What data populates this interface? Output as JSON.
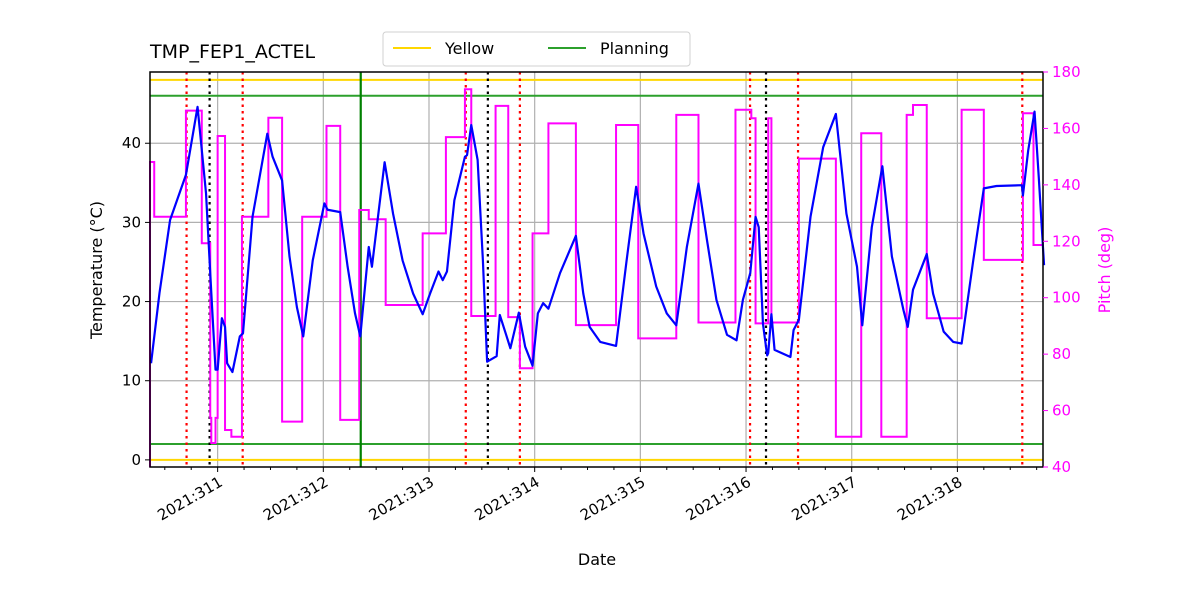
{
  "chart_data": {
    "type": "line",
    "title": "TMP_FEP1_ACTEL",
    "xlabel": "Date",
    "ylabel": "Temperature (°C)",
    "y2label": "Pitch (deg)",
    "xlim": [
      310.36,
      318.81
    ],
    "ylim": [
      -0.9,
      49.0
    ],
    "y2lim": [
      40,
      180
    ],
    "grid": true,
    "legend_placement": "top-center",
    "x_ticks": [
      311,
      312,
      313,
      314,
      315,
      316,
      317,
      318
    ],
    "x_tick_labels": [
      "2021:311",
      "2021:312",
      "2021:313",
      "2021:314",
      "2021:315",
      "2021:316",
      "2021:317",
      "2021:318"
    ],
    "y_ticks": [
      0,
      10,
      20,
      30,
      40
    ],
    "y2_ticks": [
      40,
      60,
      80,
      100,
      120,
      140,
      160,
      180
    ],
    "colors": {
      "temperature": "#0000ff",
      "pitch": "#ff00ff",
      "yellow": "#ffd700",
      "planning": "#2ca02c",
      "planning_vline": "#008000",
      "red_vline": "#ff0000",
      "black_vline": "#000000",
      "grid": "#b0b0b0"
    },
    "legend": [
      {
        "label": "Yellow",
        "color": "#ffd700"
      },
      {
        "label": "Planning",
        "color": "#2ca02c"
      }
    ],
    "limit_lines": [
      {
        "series": "Yellow",
        "values": [
          48,
          0
        ]
      },
      {
        "series": "Planning",
        "values": [
          46,
          2
        ]
      }
    ],
    "vlines": {
      "red_dotted": [
        310.706,
        311.237,
        313.348,
        313.86,
        316.038,
        316.492,
        318.614
      ],
      "black_dotted": [
        310.924,
        313.557,
        316.189
      ],
      "green_solid": [
        312.354
      ]
    },
    "temperature": [
      [
        310.37,
        12.2
      ],
      [
        310.45,
        21.1
      ],
      [
        310.55,
        30.3
      ],
      [
        310.7,
        36.0
      ],
      [
        310.81,
        44.6
      ],
      [
        310.89,
        33.7
      ],
      [
        310.94,
        21.1
      ],
      [
        310.98,
        11.4
      ],
      [
        311.0,
        11.4
      ],
      [
        311.04,
        17.9
      ],
      [
        311.07,
        16.8
      ],
      [
        311.09,
        12.2
      ],
      [
        311.14,
        11.1
      ],
      [
        311.21,
        15.6
      ],
      [
        311.24,
        16.0
      ],
      [
        311.33,
        30.7
      ],
      [
        311.47,
        41.2
      ],
      [
        311.52,
        38.3
      ],
      [
        311.61,
        35.3
      ],
      [
        311.68,
        25.7
      ],
      [
        311.75,
        19.3
      ],
      [
        311.81,
        15.6
      ],
      [
        311.9,
        25.2
      ],
      [
        312.01,
        32.4
      ],
      [
        312.04,
        31.6
      ],
      [
        312.16,
        31.3
      ],
      [
        312.23,
        24.4
      ],
      [
        312.3,
        18.5
      ],
      [
        312.35,
        15.6
      ],
      [
        312.43,
        26.9
      ],
      [
        312.46,
        24.4
      ],
      [
        312.58,
        37.6
      ],
      [
        312.66,
        31.1
      ],
      [
        312.75,
        25.2
      ],
      [
        312.85,
        21.0
      ],
      [
        312.94,
        18.4
      ],
      [
        313.01,
        21.0
      ],
      [
        313.09,
        23.8
      ],
      [
        313.13,
        22.7
      ],
      [
        313.17,
        23.8
      ],
      [
        313.24,
        32.8
      ],
      [
        313.34,
        38.3
      ],
      [
        313.36,
        38.5
      ],
      [
        313.4,
        42.3
      ],
      [
        313.46,
        37.9
      ],
      [
        313.51,
        25.2
      ],
      [
        313.55,
        12.4
      ],
      [
        313.64,
        13.1
      ],
      [
        313.67,
        18.3
      ],
      [
        313.73,
        15.8
      ],
      [
        313.77,
        14.1
      ],
      [
        313.85,
        18.6
      ],
      [
        313.91,
        14.3
      ],
      [
        313.98,
        11.9
      ],
      [
        314.03,
        18.5
      ],
      [
        314.08,
        19.8
      ],
      [
        314.13,
        19.1
      ],
      [
        314.24,
        23.6
      ],
      [
        314.39,
        28.3
      ],
      [
        314.46,
        21.0
      ],
      [
        314.52,
        16.8
      ],
      [
        314.62,
        14.9
      ],
      [
        314.77,
        14.4
      ],
      [
        314.87,
        25.2
      ],
      [
        314.96,
        34.5
      ],
      [
        315.03,
        28.6
      ],
      [
        315.15,
        21.9
      ],
      [
        315.25,
        18.5
      ],
      [
        315.34,
        17.0
      ],
      [
        315.44,
        26.9
      ],
      [
        315.55,
        34.9
      ],
      [
        315.63,
        27.8
      ],
      [
        315.72,
        20.2
      ],
      [
        315.82,
        15.8
      ],
      [
        315.91,
        15.1
      ],
      [
        315.97,
        20.2
      ],
      [
        316.04,
        23.6
      ],
      [
        316.09,
        30.7
      ],
      [
        316.12,
        29.4
      ],
      [
        316.16,
        17.2
      ],
      [
        316.2,
        13.2
      ],
      [
        316.21,
        13.5
      ],
      [
        316.24,
        18.4
      ],
      [
        316.27,
        13.9
      ],
      [
        316.42,
        13.0
      ],
      [
        316.45,
        16.4
      ],
      [
        316.5,
        17.7
      ],
      [
        316.61,
        30.7
      ],
      [
        316.73,
        39.5
      ],
      [
        316.85,
        43.7
      ],
      [
        316.95,
        31.1
      ],
      [
        317.05,
        24.4
      ],
      [
        317.1,
        17.0
      ],
      [
        317.19,
        29.4
      ],
      [
        317.29,
        37.1
      ],
      [
        317.38,
        25.7
      ],
      [
        317.49,
        18.9
      ],
      [
        317.53,
        16.8
      ],
      [
        317.58,
        21.5
      ],
      [
        317.71,
        26.0
      ],
      [
        317.77,
        21.0
      ],
      [
        317.87,
        16.2
      ],
      [
        317.96,
        14.9
      ],
      [
        318.04,
        14.7
      ],
      [
        318.15,
        25.2
      ],
      [
        318.25,
        34.3
      ],
      [
        318.37,
        34.6
      ],
      [
        318.61,
        34.7
      ],
      [
        318.62,
        33.4
      ],
      [
        318.67,
        39.1
      ],
      [
        318.73,
        44.0
      ],
      [
        318.77,
        35.7
      ],
      [
        318.82,
        24.6
      ]
    ],
    "pitch_steps": [
      [
        310.36,
        148.1
      ],
      [
        310.4,
        128.7
      ],
      [
        310.7,
        166.3
      ],
      [
        310.85,
        119.3
      ],
      [
        310.93,
        57.4
      ],
      [
        310.94,
        48.5
      ],
      [
        310.98,
        57.4
      ],
      [
        311.0,
        157.3
      ],
      [
        311.07,
        53.1
      ],
      [
        311.13,
        50.7
      ],
      [
        311.23,
        128.7
      ],
      [
        311.48,
        163.8
      ],
      [
        311.61,
        56.1
      ],
      [
        311.8,
        128.7
      ],
      [
        312.03,
        160.9
      ],
      [
        312.16,
        56.7
      ],
      [
        312.34,
        131.1
      ],
      [
        312.43,
        127.8
      ],
      [
        312.59,
        97.4
      ],
      [
        312.94,
        122.8
      ],
      [
        313.16,
        156.9
      ],
      [
        313.34,
        173.9
      ],
      [
        313.4,
        93.5
      ],
      [
        313.63,
        168.0
      ],
      [
        313.75,
        93.1
      ],
      [
        313.86,
        75.0
      ],
      [
        313.98,
        122.8
      ],
      [
        314.13,
        161.8
      ],
      [
        314.39,
        90.3
      ],
      [
        314.77,
        161.2
      ],
      [
        314.98,
        85.6
      ],
      [
        315.34,
        164.8
      ],
      [
        315.55,
        91.2
      ],
      [
        315.9,
        166.6
      ],
      [
        316.05,
        163.6
      ],
      [
        316.09,
        90.9
      ],
      [
        316.21,
        163.6
      ],
      [
        316.24,
        91.2
      ],
      [
        316.5,
        149.3
      ],
      [
        316.85,
        50.7
      ],
      [
        317.09,
        158.3
      ],
      [
        317.28,
        50.7
      ],
      [
        317.52,
        164.8
      ],
      [
        317.58,
        168.3
      ],
      [
        317.71,
        92.7
      ],
      [
        318.04,
        166.6
      ],
      [
        318.25,
        113.4
      ],
      [
        318.62,
        165.4
      ],
      [
        318.72,
        118.7
      ],
      [
        318.81,
        118.7
      ]
    ]
  }
}
